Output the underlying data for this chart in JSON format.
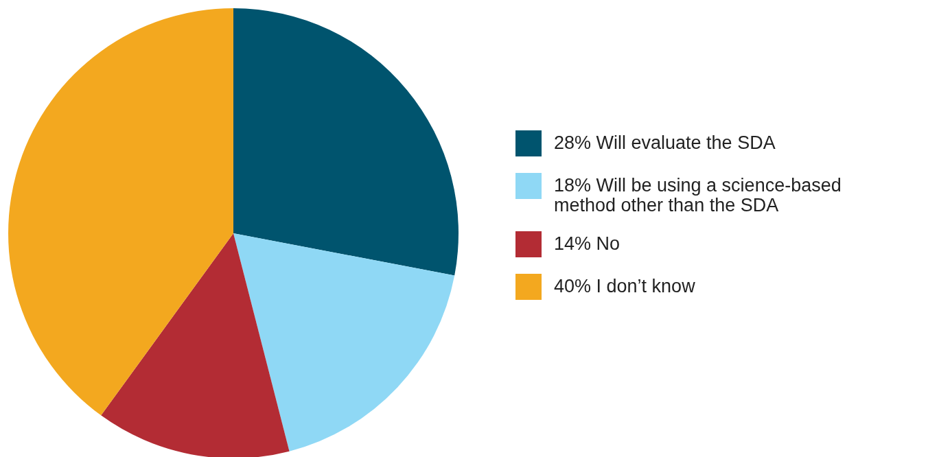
{
  "chart_data": {
    "type": "pie",
    "categories": [
      "Will evaluate the SDA",
      "Will be using a science-based method other than the SDA",
      "No",
      "I don’t know"
    ],
    "values": [
      28,
      18,
      14,
      40
    ],
    "value_labels": [
      "28%",
      "18%",
      "14%",
      "40%"
    ],
    "colors": [
      "#00546e",
      "#8fd8f5",
      "#b32c34",
      "#f3a81f"
    ],
    "legend": "right"
  }
}
